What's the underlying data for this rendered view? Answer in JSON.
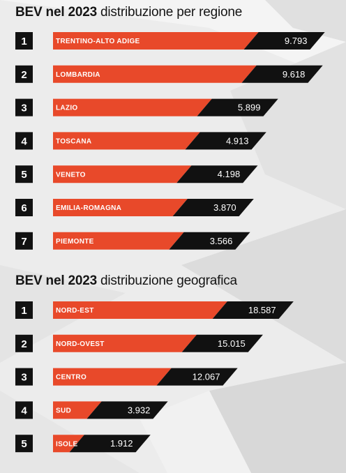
{
  "titles": [
    {
      "bold": "BEV nel 2023",
      "rest": "distribuzione per regione"
    },
    {
      "bold": "BEV nel 2023",
      "rest": "distribuzione geografica"
    }
  ],
  "colors": {
    "bar": "#e8492a",
    "black": "#111111",
    "text": "#ffffff"
  },
  "chart_data": [
    {
      "type": "bar",
      "orientation": "horizontal",
      "title": "BEV nel 2023 distribuzione per regione",
      "ranks": [
        "1",
        "2",
        "3",
        "4",
        "5",
        "6",
        "7"
      ],
      "categories": [
        "TRENTINO-ALTO ADIGE",
        "LOMBARDIA",
        "LAZIO",
        "TOSCANA",
        "VENETO",
        "EMILIA-ROMAGNA",
        "PIEMONTE"
      ],
      "values": [
        9793,
        9618,
        5899,
        4913,
        4198,
        3870,
        3566
      ],
      "value_labels": [
        "9.793",
        "9.618",
        "5.899",
        "4.913",
        "4.198",
        "3.870",
        "3.566"
      ]
    },
    {
      "type": "bar",
      "orientation": "horizontal",
      "title": "BEV nel 2023 distribuzione geografica",
      "ranks": [
        "1",
        "2",
        "3",
        "4",
        "5"
      ],
      "categories": [
        "NORD-EST",
        "NORD-OVEST",
        "CENTRO",
        "SUD",
        "ISOLE"
      ],
      "values": [
        18587,
        15015,
        12067,
        3932,
        1912
      ],
      "value_labels": [
        "18.587",
        "15.015",
        "12.067",
        "3.932",
        "1.912"
      ]
    }
  ]
}
